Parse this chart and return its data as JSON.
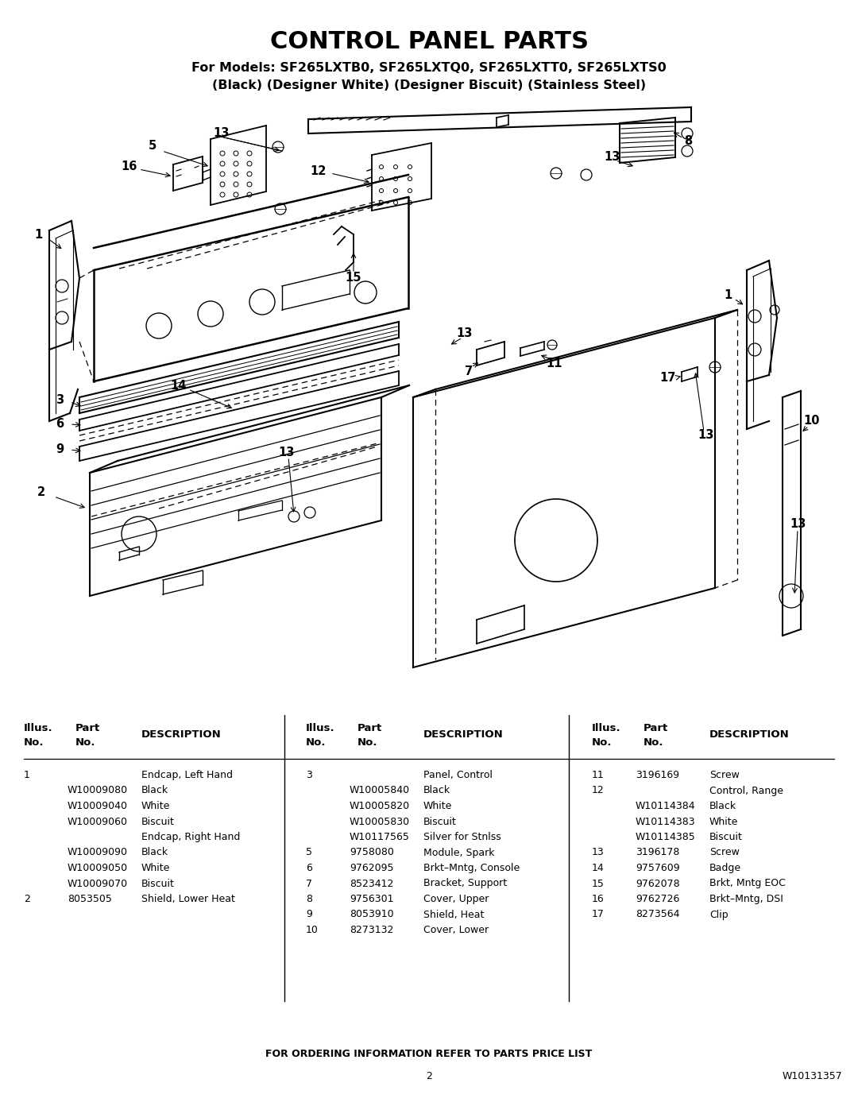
{
  "title": "CONTROL PANEL PARTS",
  "subtitle1": "For Models: SF265LXTB0, SF265LXTQ0, SF265LXTT0, SF265LXTS0",
  "subtitle2": "(Black) (Designer White) (Designer Biscuit) (Stainless Steel)",
  "page_number": "2",
  "doc_number": "W10131357",
  "footer_text": "FOR ORDERING INFORMATION REFER TO PARTS PRICE LIST",
  "parts_col1": [
    [
      "1",
      "",
      "Endcap, Left Hand"
    ],
    [
      "",
      "W10009080",
      "Black"
    ],
    [
      "",
      "W10009040",
      "White"
    ],
    [
      "",
      "W10009060",
      "Biscuit"
    ],
    [
      "",
      "",
      "Endcap, Right Hand"
    ],
    [
      "",
      "W10009090",
      "Black"
    ],
    [
      "",
      "W10009050",
      "White"
    ],
    [
      "",
      "W10009070",
      "Biscuit"
    ],
    [
      "2",
      "8053505",
      "Shield, Lower Heat"
    ]
  ],
  "parts_col2": [
    [
      "3",
      "",
      "Panel, Control"
    ],
    [
      "",
      "W10005840",
      "Black"
    ],
    [
      "",
      "W10005820",
      "White"
    ],
    [
      "",
      "W10005830",
      "Biscuit"
    ],
    [
      "",
      "W10117565",
      "Silver for Stnlss"
    ],
    [
      "5",
      "9758080",
      "Module, Spark"
    ],
    [
      "6",
      "9762095",
      "Brkt–Mntg, Console"
    ],
    [
      "7",
      "8523412",
      "Bracket, Support"
    ],
    [
      "8",
      "9756301",
      "Cover, Upper"
    ],
    [
      "9",
      "8053910",
      "Shield, Heat"
    ],
    [
      "10",
      "8273132",
      "Cover, Lower"
    ]
  ],
  "parts_col3": [
    [
      "11",
      "3196169",
      "Screw"
    ],
    [
      "12",
      "",
      "Control, Range"
    ],
    [
      "",
      "W10114384",
      "Black"
    ],
    [
      "",
      "W10114383",
      "White"
    ],
    [
      "",
      "W10114385",
      "Biscuit"
    ],
    [
      "13",
      "3196178",
      "Screw"
    ],
    [
      "14",
      "9757609",
      "Badge"
    ],
    [
      "15",
      "9762078",
      "Brkt, Mntg EOC"
    ],
    [
      "16",
      "9762726",
      "Brkt–Mntg, DSI"
    ],
    [
      "17",
      "8273564",
      "Clip"
    ]
  ],
  "background_color": "#ffffff",
  "text_color": "#000000"
}
